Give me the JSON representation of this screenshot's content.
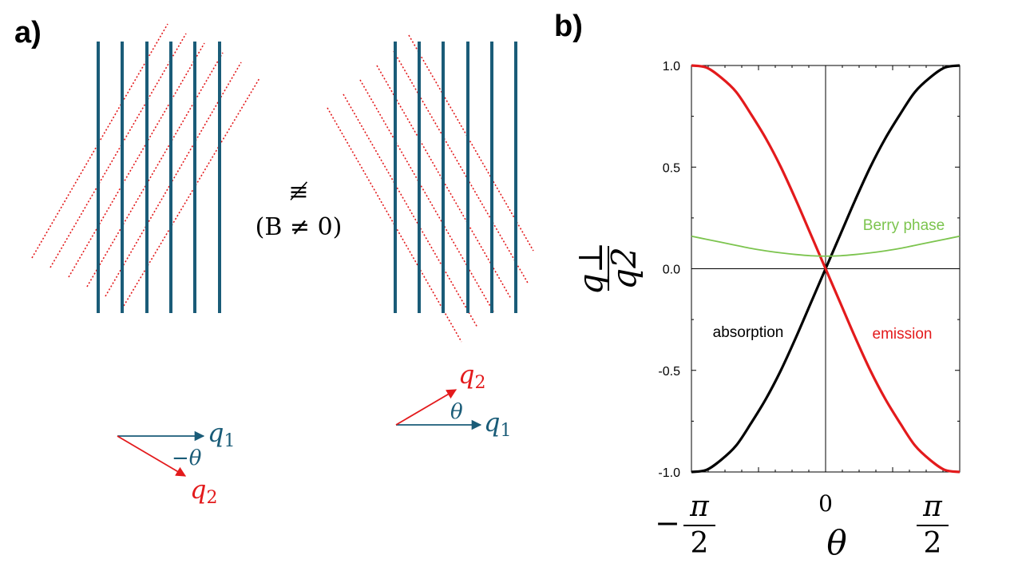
{
  "panel_a": {
    "label": "a)",
    "relation_symbol": "≢",
    "condition": "(B ≠ 0)",
    "left_vectors": {
      "q1_symbol": "q",
      "q1_subscript": "1",
      "angle_label": "−θ",
      "q2_symbol": "q",
      "q2_subscript": "2"
    },
    "right_vectors": {
      "q2_symbol": "q",
      "q2_subscript": "2",
      "angle_label": "θ",
      "q1_symbol": "q",
      "q1_subscript": "1"
    },
    "colors": {
      "lattice_q1": "#1a5c78",
      "lattice_q2": "#e31a1c"
    }
  },
  "panel_b": {
    "label": "b)"
  },
  "chart_data": {
    "type": "line",
    "xlabel": "θ",
    "ylabel_numerator": "q⊥",
    "ylabel_denominator": "q2",
    "xlim": [
      -1.5708,
      1.5708
    ],
    "ylim": [
      -1.0,
      1.0
    ],
    "y_ticks": [
      "1.0",
      "0.5",
      "0.0",
      "-0.5",
      "-1.0"
    ],
    "x_ticks": [
      {
        "value": -1.5708,
        "label_sign": "−",
        "label_num": "π",
        "label_den": "2"
      },
      {
        "value": 0,
        "label": "0"
      },
      {
        "value": 1.5708,
        "label_sign": "",
        "label_num": "π",
        "label_den": "2"
      }
    ],
    "grid": false,
    "series": [
      {
        "name": "absorption",
        "color": "#000000",
        "x": [
          -1.5708,
          -1.3963,
          -1.2217,
          -1.0472,
          -0.8727,
          -0.6981,
          -0.5236,
          -0.3491,
          -0.1745,
          0,
          0.1745,
          0.3491,
          0.5236,
          0.6981,
          0.8727,
          1.0472,
          1.2217,
          1.3963,
          1.5708
        ],
        "y": [
          -1.0,
          -0.99,
          -0.94,
          -0.87,
          -0.76,
          -0.64,
          -0.5,
          -0.34,
          -0.17,
          0.0,
          0.17,
          0.34,
          0.5,
          0.64,
          0.76,
          0.87,
          0.94,
          0.99,
          1.0
        ]
      },
      {
        "name": "emission",
        "color": "#e31a1c",
        "x": [
          -1.5708,
          -1.3963,
          -1.2217,
          -1.0472,
          -0.8727,
          -0.6981,
          -0.5236,
          -0.3491,
          -0.1745,
          0,
          0.1745,
          0.3491,
          0.5236,
          0.6981,
          0.8727,
          1.0472,
          1.2217,
          1.3963,
          1.5708
        ],
        "y": [
          1.0,
          0.99,
          0.94,
          0.87,
          0.76,
          0.64,
          0.5,
          0.34,
          0.17,
          0.0,
          -0.17,
          -0.34,
          -0.5,
          -0.64,
          -0.76,
          -0.87,
          -0.94,
          -0.99,
          -1.0
        ]
      },
      {
        "name": "Berry phase",
        "color": "#7cc44e",
        "x": [
          -1.5708,
          -1.3963,
          -1.2217,
          -1.0472,
          -0.8727,
          -0.6981,
          -0.5236,
          -0.3491,
          -0.1745,
          0,
          0.1745,
          0.3491,
          0.5236,
          0.6981,
          0.8727,
          1.0472,
          1.2217,
          1.3963,
          1.5708
        ],
        "y": [
          0.16,
          0.145,
          0.13,
          0.115,
          0.1,
          0.088,
          0.078,
          0.07,
          0.064,
          0.062,
          0.064,
          0.07,
          0.078,
          0.088,
          0.1,
          0.115,
          0.13,
          0.145,
          0.16
        ]
      }
    ]
  }
}
